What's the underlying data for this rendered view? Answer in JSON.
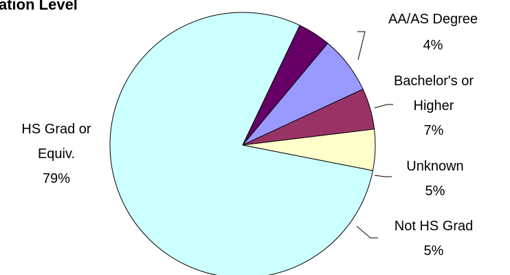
{
  "chart_data": {
    "type": "pie",
    "title": "ation Level",
    "slices": [
      {
        "label_lines": [
          "AA/AS Degree",
          "4%"
        ],
        "value": 4,
        "color": "#660066"
      },
      {
        "label_lines": [
          "Bachelor's or",
          "Higher",
          "7%"
        ],
        "value": 7,
        "color": "#9999ff"
      },
      {
        "label_lines": [
          "Unknown",
          "5%"
        ],
        "value": 5,
        "color": "#993366"
      },
      {
        "label_lines": [
          "Not HS Grad",
          "5%"
        ],
        "value": 5,
        "color": "#ffffcc"
      },
      {
        "label_lines": [
          "HS Grad or",
          "Equiv.",
          "79%"
        ],
        "value": 79,
        "color": "#ccffff"
      }
    ],
    "start_angle_deg": 64.5,
    "direction": "clockwise",
    "legend": "none"
  }
}
